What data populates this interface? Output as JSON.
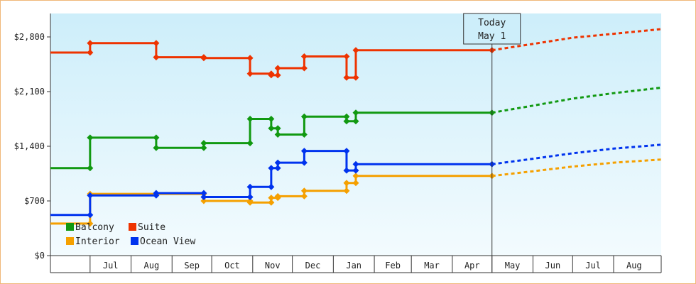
{
  "chart_data": {
    "type": "line",
    "title": "",
    "xlabel": "",
    "ylabel": "",
    "ylim": [
      0,
      3100
    ],
    "yticks": [
      0,
      700,
      1400,
      2100,
      2800
    ],
    "ytick_labels": [
      "$0",
      "$700",
      "$1,400",
      "$2,100",
      "$2,800"
    ],
    "x_domain": [
      "2012-06-01",
      "2013-09-06"
    ],
    "month_labels": [
      {
        "label": "Jul",
        "start": "2012-07-01",
        "end": "2012-08-01"
      },
      {
        "label": "Aug",
        "start": "2012-08-01",
        "end": "2012-09-01"
      },
      {
        "label": "Sep",
        "start": "2012-09-01",
        "end": "2012-10-01"
      },
      {
        "label": "Oct",
        "start": "2012-10-01",
        "end": "2012-11-01"
      },
      {
        "label": "Nov",
        "start": "2012-11-01",
        "end": "2012-12-01"
      },
      {
        "label": "Dec",
        "start": "2012-12-01",
        "end": "2013-01-01"
      },
      {
        "label": "Jan",
        "start": "2013-01-01",
        "end": "2013-02-01"
      },
      {
        "label": "Feb",
        "start": "2013-02-01",
        "end": "2013-03-01"
      },
      {
        "label": "Mar",
        "start": "2013-03-01",
        "end": "2013-04-01"
      },
      {
        "label": "Apr",
        "start": "2013-04-01",
        "end": "2013-05-01"
      },
      {
        "label": "May",
        "start": "2013-05-01",
        "end": "2013-06-01"
      },
      {
        "label": "Jun",
        "start": "2013-06-01",
        "end": "2013-07-01"
      },
      {
        "label": "Jul",
        "start": "2013-07-01",
        "end": "2013-08-01"
      },
      {
        "label": "Aug",
        "start": "2013-08-01",
        "end": "2013-09-01"
      }
    ],
    "today": {
      "line1": "Today",
      "line2": "May 1",
      "date": "2013-05-01"
    },
    "legend": {
      "placement": "bottom-left"
    },
    "series": [
      {
        "name": "Balcony",
        "color": "#119911",
        "points": [
          [
            "2012-06-01",
            1120
          ],
          [
            "2012-07-01",
            1120
          ],
          [
            "2012-07-01",
            1510
          ],
          [
            "2012-08-20",
            1510
          ],
          [
            "2012-08-20",
            1380
          ],
          [
            "2012-09-25",
            1380
          ],
          [
            "2012-09-25",
            1440
          ],
          [
            "2012-10-30",
            1440
          ],
          [
            "2012-10-30",
            1750
          ],
          [
            "2012-11-15",
            1750
          ],
          [
            "2012-11-15",
            1630
          ],
          [
            "2012-11-20",
            1630
          ],
          [
            "2012-11-20",
            1550
          ],
          [
            "2012-12-10",
            1550
          ],
          [
            "2012-12-10",
            1780
          ],
          [
            "2013-01-11",
            1780
          ],
          [
            "2013-01-11",
            1720
          ],
          [
            "2013-01-18",
            1720
          ],
          [
            "2013-01-18",
            1830
          ],
          [
            "2013-05-01",
            1830
          ]
        ],
        "forecast": [
          [
            "2013-05-01",
            1830
          ],
          [
            "2013-06-01",
            1920
          ],
          [
            "2013-07-01",
            2010
          ],
          [
            "2013-08-01",
            2080
          ],
          [
            "2013-09-06",
            2150
          ]
        ]
      },
      {
        "name": "Suite",
        "color": "#ee3300",
        "points": [
          [
            "2012-06-01",
            2600
          ],
          [
            "2012-07-01",
            2600
          ],
          [
            "2012-07-01",
            2720
          ],
          [
            "2012-08-20",
            2720
          ],
          [
            "2012-08-20",
            2540
          ],
          [
            "2012-09-25",
            2540
          ],
          [
            "2012-09-25",
            2530
          ],
          [
            "2012-10-30",
            2530
          ],
          [
            "2012-10-30",
            2330
          ],
          [
            "2012-11-15",
            2330
          ],
          [
            "2012-11-15",
            2310
          ],
          [
            "2012-11-20",
            2310
          ],
          [
            "2012-11-20",
            2400
          ],
          [
            "2012-12-10",
            2400
          ],
          [
            "2012-12-10",
            2550
          ],
          [
            "2013-01-11",
            2550
          ],
          [
            "2013-01-11",
            2280
          ],
          [
            "2013-01-18",
            2280
          ],
          [
            "2013-01-18",
            2630
          ],
          [
            "2013-05-01",
            2630
          ]
        ],
        "forecast": [
          [
            "2013-05-01",
            2630
          ],
          [
            "2013-06-01",
            2710
          ],
          [
            "2013-07-01",
            2790
          ],
          [
            "2013-08-01",
            2840
          ],
          [
            "2013-09-06",
            2900
          ]
        ]
      },
      {
        "name": "Interior",
        "color": "#f5a000",
        "points": [
          [
            "2012-06-01",
            410
          ],
          [
            "2012-07-01",
            410
          ],
          [
            "2012-07-01",
            790
          ],
          [
            "2012-08-20",
            790
          ],
          [
            "2012-08-20",
            790
          ],
          [
            "2012-09-25",
            790
          ],
          [
            "2012-09-25",
            700
          ],
          [
            "2012-10-30",
            700
          ],
          [
            "2012-10-30",
            680
          ],
          [
            "2012-11-15",
            680
          ],
          [
            "2012-11-15",
            740
          ],
          [
            "2012-11-20",
            740
          ],
          [
            "2012-11-20",
            760
          ],
          [
            "2012-12-10",
            760
          ],
          [
            "2012-12-10",
            830
          ],
          [
            "2013-01-11",
            830
          ],
          [
            "2013-01-11",
            930
          ],
          [
            "2013-01-18",
            930
          ],
          [
            "2013-01-18",
            1020
          ],
          [
            "2013-05-01",
            1020
          ]
        ],
        "forecast": [
          [
            "2013-05-01",
            1020
          ],
          [
            "2013-06-01",
            1080
          ],
          [
            "2013-07-01",
            1140
          ],
          [
            "2013-08-01",
            1190
          ],
          [
            "2013-09-06",
            1230
          ]
        ]
      },
      {
        "name": "Ocean View",
        "color": "#0033ee",
        "points": [
          [
            "2012-06-01",
            520
          ],
          [
            "2012-07-01",
            520
          ],
          [
            "2012-07-01",
            770
          ],
          [
            "2012-08-20",
            770
          ],
          [
            "2012-08-20",
            800
          ],
          [
            "2012-09-25",
            800
          ],
          [
            "2012-09-25",
            750
          ],
          [
            "2012-10-30",
            750
          ],
          [
            "2012-10-30",
            880
          ],
          [
            "2012-11-15",
            880
          ],
          [
            "2012-11-15",
            1120
          ],
          [
            "2012-11-20",
            1120
          ],
          [
            "2012-11-20",
            1190
          ],
          [
            "2012-12-10",
            1190
          ],
          [
            "2012-12-10",
            1340
          ],
          [
            "2013-01-11",
            1340
          ],
          [
            "2013-01-11",
            1090
          ],
          [
            "2013-01-18",
            1090
          ],
          [
            "2013-01-18",
            1170
          ],
          [
            "2013-05-01",
            1170
          ]
        ],
        "forecast": [
          [
            "2013-05-01",
            1170
          ],
          [
            "2013-06-01",
            1240
          ],
          [
            "2013-07-01",
            1310
          ],
          [
            "2013-08-01",
            1370
          ],
          [
            "2013-09-06",
            1420
          ]
        ]
      }
    ]
  }
}
